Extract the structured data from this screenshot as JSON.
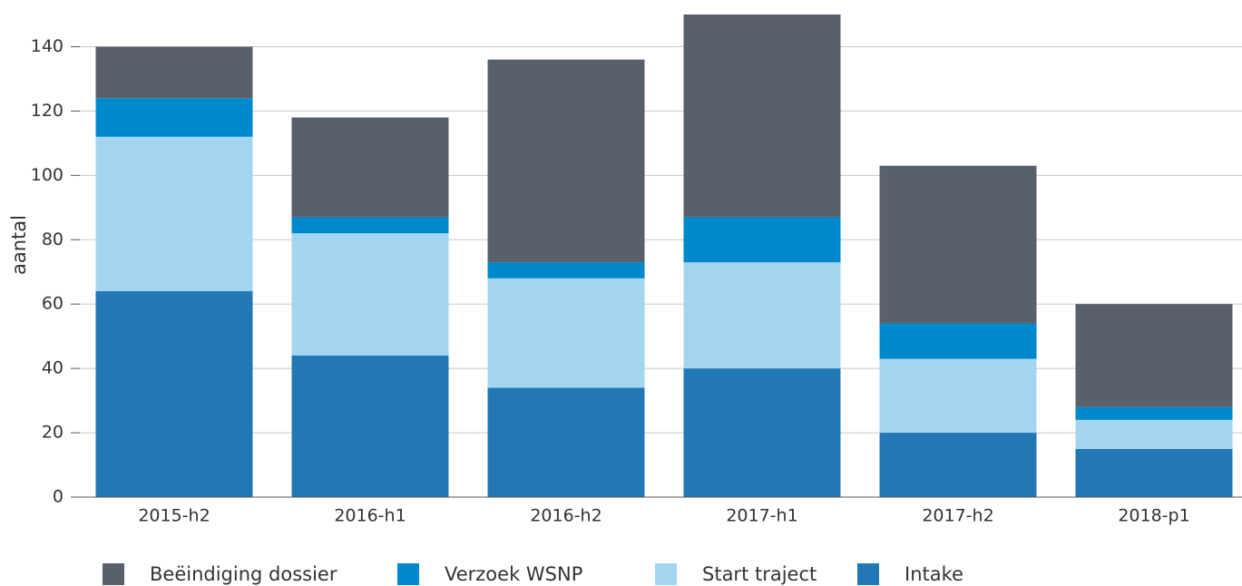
{
  "chart_data": {
    "type": "bar",
    "stacked": true,
    "y_label": "aantal",
    "categories": [
      "2015-h2",
      "2016-h1",
      "2016-h2",
      "2017-h1",
      "2017-h2",
      "2018-p1"
    ],
    "series": [
      {
        "name": "Beëindiging dossier",
        "color": "#5a606b",
        "values": [
          16,
          31,
          63,
          63,
          49,
          32
        ]
      },
      {
        "name": "Verzoek WSNP",
        "color": "#0088cc",
        "values": [
          12,
          5,
          5,
          14,
          11,
          4
        ]
      },
      {
        "name": "Start traject",
        "color": "#a3d4f0",
        "values": [
          48,
          38,
          34,
          33,
          23,
          9
        ]
      },
      {
        "name": "Intake",
        "color": "#2178b4",
        "values": [
          64,
          44,
          34,
          40,
          20,
          15
        ]
      }
    ],
    "ylim": [
      0,
      150
    ],
    "yticks": [
      0,
      20,
      40,
      60,
      80,
      100,
      120,
      140
    ],
    "grid": true,
    "legend": "bottom"
  }
}
